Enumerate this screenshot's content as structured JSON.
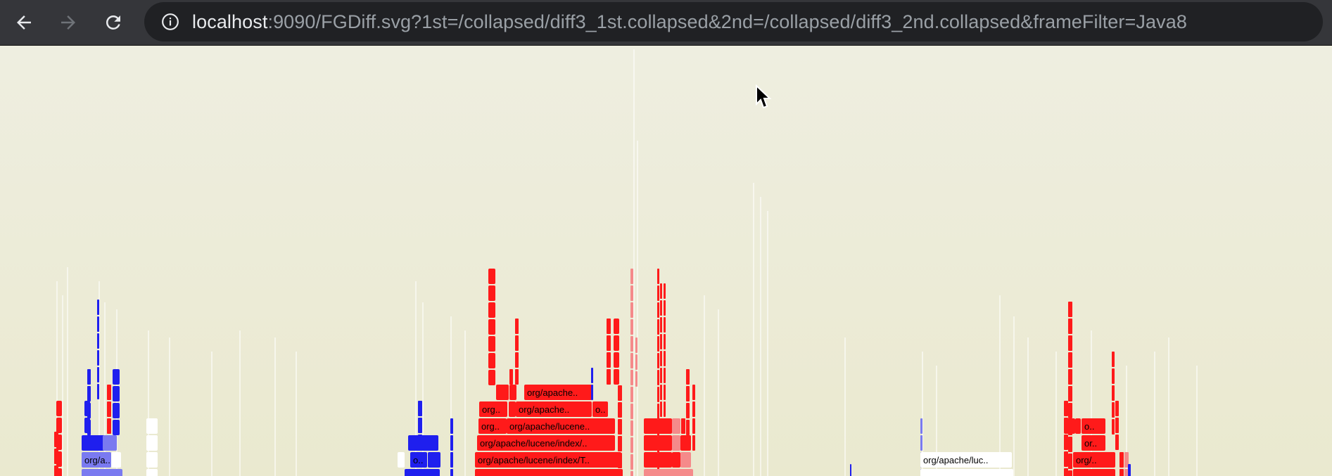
{
  "browser": {
    "url_host": "localhost",
    "url_rest": ":9090/FGDiff.svg?1st=/collapsed/diff3_1st.collapsed&2nd=/collapsed/diff3_2nd.collapsed&frameFilter=Java8",
    "icons": {
      "back": "arrow-left-icon",
      "forward": "arrow-right-icon",
      "reload": "reload-icon",
      "site_info": "info-icon"
    }
  },
  "flamegraph": {
    "colors": {
      "increase": "#ff1a1a",
      "increase_light": "#f58a8a",
      "decrease": "#1f1fee",
      "decrease_light": "#7a7af0",
      "neutral": "#ffffff"
    },
    "labels": [
      "org/apache..",
      "org..",
      "org/apache..",
      "o..",
      "org..",
      "org/apache/lucene..",
      "org/apache/lucene/index/..",
      "org/apache/lucene/index/T..",
      "org/a..",
      "o..",
      "org/apache/luc..",
      "o..",
      "or..",
      "org/.."
    ]
  }
}
